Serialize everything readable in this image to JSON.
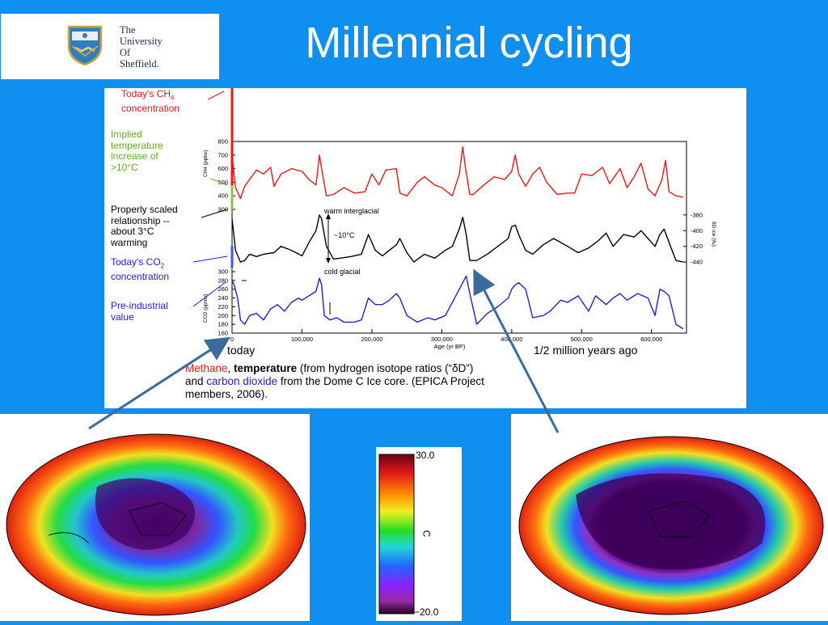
{
  "slide": {
    "title": "Millennial cycling",
    "logo_lines": [
      "The",
      "University",
      "Of",
      "Sheffield."
    ]
  },
  "annotations": {
    "ch4_today_line1": "Today's CH",
    "ch4_today_sub": "4",
    "ch4_today_line2": "concentration",
    "implied": [
      "Implied",
      "temperature",
      "increase of",
      ">10°C"
    ],
    "properly": [
      "Properly scaled",
      "relationship --",
      "about 3°C",
      "warming"
    ],
    "co2_today_line1": "Today's CO",
    "co2_today_sub": "2",
    "co2_today_line2": "concentration",
    "preind": [
      "Pre-industrial",
      "value"
    ],
    "warm_interglacial": "warm interglacial",
    "delta_label": "~10°C",
    "cold_glacial": "cold glacial",
    "today": "today",
    "half_million": "1/2 million years ago",
    "caption_methane": "Methane",
    "caption_comma": ", ",
    "caption_temperature": "temperature",
    "caption_rest1": " (from hydrogen isotope ratios (“δD”)",
    "caption_and": "and ",
    "caption_co2": "carbon dioxide",
    "caption_rest2": " from the Dome C Ice core.  (EPICA Project",
    "caption_line3": "members, 2006)."
  },
  "colorbar": {
    "max_label": "30.0",
    "min_label": "−20.0",
    "unit_label": "C"
  },
  "colors": {
    "background": "#0f8ff0",
    "ch4": "#e41a1a",
    "temp": "#000000",
    "co2": "#2222cc",
    "implied": "#66aa22",
    "arrow": "#3c6a9c"
  },
  "chart_data": [
    {
      "type": "line",
      "xlabel": "Age (yr BP)",
      "x_ticks": [
        "0",
        "100,000",
        "200,000",
        "300,000",
        "400,000",
        "500,000",
        "600,000"
      ],
      "xlim": [
        0,
        650000
      ],
      "series": [
        {
          "name": "CH4",
          "ylabel": "CH4 (ppbv)",
          "y_ticks": [
            "800",
            "700",
            "600",
            "500",
            "400",
            "300"
          ],
          "ylim": [
            300,
            800
          ],
          "x": [
            0,
            5000,
            12000,
            18000,
            25000,
            35000,
            45000,
            55000,
            60000,
            70000,
            85000,
            100000,
            110000,
            120000,
            125000,
            128000,
            135000,
            145000,
            160000,
            175000,
            190000,
            200000,
            210000,
            220000,
            235000,
            240000,
            250000,
            265000,
            275000,
            290000,
            300000,
            315000,
            325000,
            330000,
            334000,
            340000,
            345000,
            360000,
            375000,
            390000,
            400000,
            405000,
            410000,
            420000,
            430000,
            440000,
            450000,
            465000,
            480000,
            490000,
            500000,
            515000,
            530000,
            540000,
            555000,
            565000,
            575000,
            585000,
            595000,
            605000,
            615000,
            620000,
            625000,
            635000,
            645000
          ],
          "values": [
            700,
            460,
            380,
            470,
            520,
            590,
            560,
            610,
            470,
            560,
            600,
            580,
            520,
            480,
            700,
            600,
            400,
            410,
            460,
            420,
            430,
            560,
            480,
            590,
            600,
            420,
            400,
            500,
            540,
            480,
            460,
            400,
            560,
            760,
            600,
            410,
            410,
            480,
            540,
            520,
            580,
            700,
            560,
            470,
            560,
            610,
            500,
            410,
            420,
            420,
            560,
            550,
            610,
            490,
            600,
            460,
            540,
            640,
            450,
            400,
            520,
            660,
            430,
            400,
            390
          ]
        },
        {
          "name": "Temperature (δD)",
          "ylabel": "δD ice (‰)",
          "y_ticks": [
            "-380",
            "-400",
            "-420",
            "-440"
          ],
          "ylim": [
            -445,
            -375
          ],
          "x": [
            0,
            5000,
            12000,
            18000,
            25000,
            35000,
            45000,
            60000,
            70000,
            85000,
            100000,
            110000,
            120000,
            125000,
            128000,
            135000,
            145000,
            155000,
            170000,
            185000,
            195000,
            205000,
            215000,
            225000,
            235000,
            240000,
            250000,
            260000,
            275000,
            290000,
            305000,
            315000,
            325000,
            330000,
            335000,
            340000,
            350000,
            365000,
            380000,
            395000,
            400000,
            405000,
            410000,
            420000,
            430000,
            445000,
            460000,
            470000,
            480000,
            495000,
            510000,
            525000,
            535000,
            545000,
            560000,
            575000,
            585000,
            595000,
            605000,
            612000,
            618000,
            625000,
            635000,
            645000
          ],
          "values": [
            -385,
            -425,
            -440,
            -438,
            -430,
            -433,
            -430,
            -428,
            -420,
            -425,
            -432,
            -415,
            -400,
            -380,
            -385,
            -420,
            -436,
            -435,
            -433,
            -430,
            -405,
            -425,
            -432,
            -425,
            -418,
            -410,
            -428,
            -440,
            -430,
            -435,
            -425,
            -420,
            -398,
            -383,
            -405,
            -438,
            -438,
            -430,
            -420,
            -410,
            -395,
            -393,
            -405,
            -425,
            -430,
            -418,
            -410,
            -415,
            -420,
            -428,
            -422,
            -412,
            -403,
            -420,
            -405,
            -408,
            -400,
            -410,
            -420,
            -405,
            -398,
            -415,
            -438,
            -440
          ]
        },
        {
          "name": "CO2",
          "ylabel": "CO2 (ppmv)",
          "y_ticks": [
            "300",
            "280",
            "260",
            "240",
            "220",
            "200",
            "180",
            "160"
          ],
          "ylim": [
            160,
            300
          ],
          "x": [
            0,
            3000,
            8000,
            12000,
            18000,
            25000,
            35000,
            45000,
            55000,
            65000,
            75000,
            85000,
            95000,
            100000,
            110000,
            120000,
            125000,
            128000,
            132000,
            140000,
            150000,
            160000,
            175000,
            185000,
            195000,
            205000,
            215000,
            225000,
            235000,
            240000,
            250000,
            265000,
            280000,
            290000,
            305000,
            315000,
            325000,
            330000,
            335000,
            340000,
            350000,
            365000,
            380000,
            395000,
            400000,
            405000,
            410000,
            420000,
            430000,
            445000,
            455000,
            470000,
            480000,
            495000,
            510000,
            520000,
            535000,
            545000,
            555000,
            565000,
            580000,
            595000,
            605000,
            612000,
            618000,
            625000,
            635000,
            645000
          ],
          "values": [
            280,
            270,
            240,
            190,
            180,
            200,
            205,
            190,
            215,
            225,
            210,
            230,
            240,
            235,
            245,
            255,
            285,
            270,
            200,
            190,
            195,
            185,
            185,
            190,
            240,
            225,
            225,
            235,
            250,
            240,
            200,
            185,
            195,
            190,
            200,
            230,
            260,
            275,
            290,
            250,
            180,
            205,
            220,
            240,
            260,
            270,
            275,
            260,
            195,
            200,
            210,
            235,
            230,
            245,
            210,
            245,
            225,
            240,
            250,
            235,
            250,
            240,
            200,
            260,
            255,
            245,
            180,
            170
          ]
        }
      ]
    }
  ]
}
